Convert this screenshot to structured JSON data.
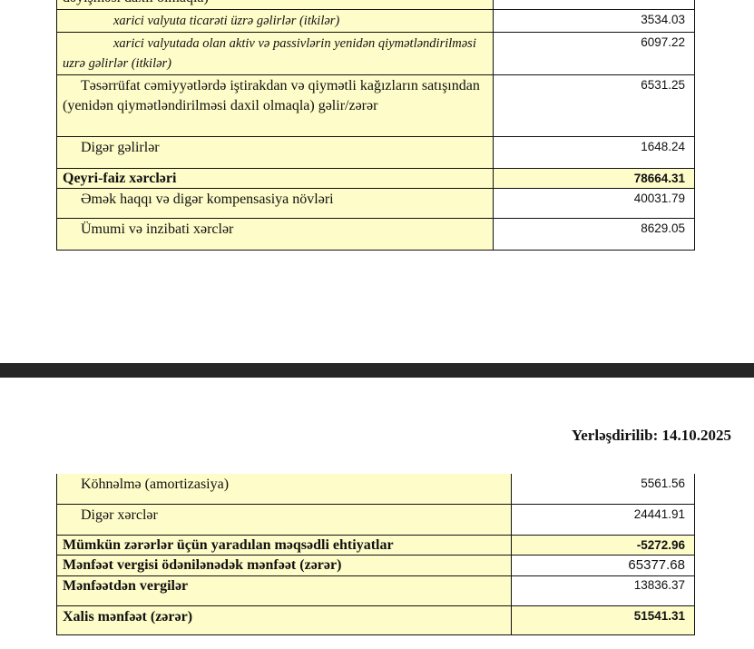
{
  "page1": {
    "rows": [
      {
        "label": "dəyişməsi daxil olmaqla)",
        "value": ""
      },
      {
        "label": "xarici valyuta ticarəti üzrə gəlirlər (itkilər)",
        "value": "3534.03"
      },
      {
        "label": "xarici valyutada olan aktiv və passivlərin yenidən qiymətləndirilməsi uzrə gəlirlər (itkilər)",
        "value": "6097.22"
      },
      {
        "label": "Təsərrüfat cəmiyyətlərdə iştirakdan və qiymətli kağızların satışından (yenidən qiymətləndirilməsi daxil olmaqla) gəlir/zərər",
        "value": "6531.25"
      },
      {
        "label": "Digər gəlirlər",
        "value": "1648.24"
      },
      {
        "label": "Qeyri-faiz xərcləri",
        "value": "78664.31"
      },
      {
        "label": "Əmək haqqı və digər kompensasiya növləri",
        "value": "40031.79"
      },
      {
        "label": "Ümumi və inzibati xərclər",
        "value": "8629.05"
      }
    ]
  },
  "page2": {
    "date_line": "Yerləşdirilib: 14.10.2025",
    "rows": [
      {
        "label": "Köhnəlmə (amortizasiya)",
        "value": "5561.56"
      },
      {
        "label": "Digər xərclər",
        "value": "24441.91"
      },
      {
        "label": "Mümkün zərərlər üçün yaradılan məqsədli ehtiyatlar",
        "value": "-5272.96"
      },
      {
        "label": "Mənfəət vergisi ödənilənədək mənfəət (zərər)",
        "value": "65377.68"
      },
      {
        "label": "Mənfəətdən vergilər",
        "value": "13836.37"
      },
      {
        "label": "Xalis mənfəət (zərər)",
        "value": "51541.31"
      }
    ]
  },
  "colors": {
    "highlight": "#fefcc8",
    "separator": "#262626"
  }
}
